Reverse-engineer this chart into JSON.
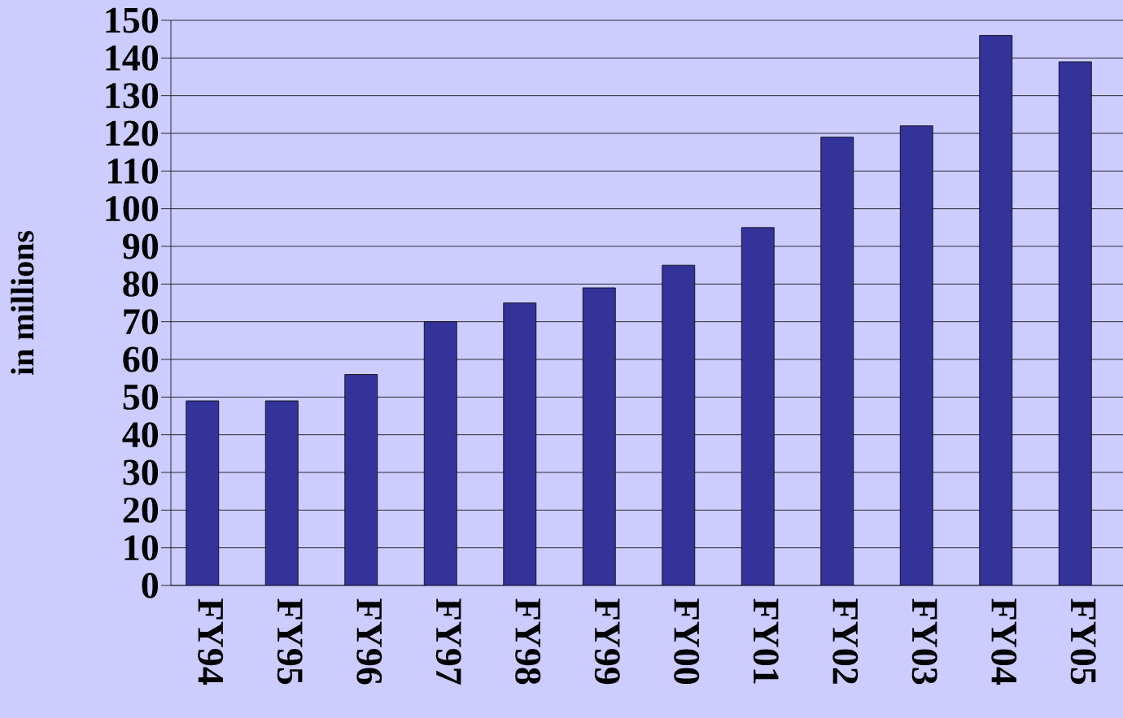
{
  "chart_data": {
    "type": "bar",
    "ylabel": "in millions",
    "categories": [
      "FY94",
      "FY95",
      "FY96",
      "FY97",
      "FY98",
      "FY99",
      "FY00",
      "FY01",
      "FY02",
      "FY03",
      "FY04",
      "FY05"
    ],
    "values": [
      49,
      49,
      56,
      70,
      75,
      79,
      85,
      95,
      119,
      122,
      146,
      139
    ],
    "color": "#333399",
    "ylim": [
      0,
      150
    ],
    "yticks": [
      0,
      10,
      20,
      30,
      40,
      50,
      60,
      70,
      80,
      90,
      100,
      110,
      120,
      130,
      140,
      150
    ],
    "grid": "y"
  }
}
